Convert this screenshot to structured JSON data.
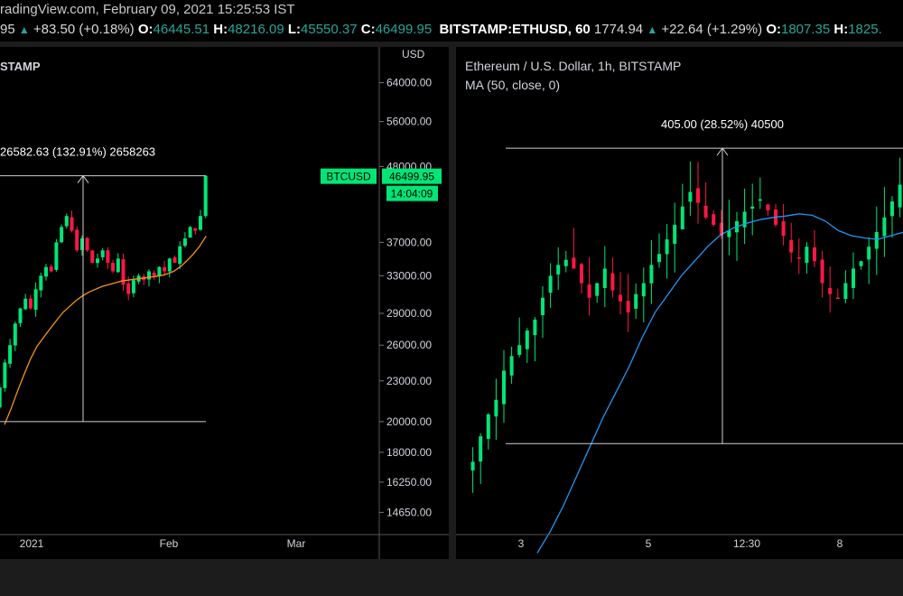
{
  "header": {
    "source_line": "radingView.com, February 09, 2021 15:25:53 IST",
    "btc_quote": {
      "last_fragment": "95",
      "change": "+83.50 (+0.18%)",
      "open_label": "O:",
      "open": "46445.51",
      "high_label": "H:",
      "high": "48216.09",
      "low_label": "L:",
      "low": "45550.37",
      "close_label": "C:",
      "close": "46499.95"
    },
    "eth_quote": {
      "symbol": "BITSTAMP:ETHUSD, 60",
      "last": "1774.94",
      "change": "+22.64 (+1.29%)",
      "open_label": "O:",
      "open": "1807.35",
      "high_label": "H:",
      "high": "1825."
    }
  },
  "colors": {
    "up": "#00e676",
    "down": "#ff1744",
    "ma_btc": "#f7931a",
    "ma_eth": "#2196f3",
    "background": "#000000",
    "price_tag": "#00e676"
  },
  "chart_data": [
    {
      "type": "candlestick",
      "title": "STAMP",
      "axis_unit": "USD",
      "scale": "log",
      "ylim": [
        14000,
        68000
      ],
      "y_ticks": [
        "64000.00",
        "56000.00",
        "48000.00",
        "37000.00",
        "33000.00",
        "29000.00",
        "26000.00",
        "23000.00",
        "20000.00",
        "18000.00",
        "16250.00",
        "14650.00"
      ],
      "x_ticks": [
        "2021",
        "Feb",
        "Mar"
      ],
      "last_price_label": "BTCUSD",
      "last_price": "46499.95",
      "countdown": "14:04:09",
      "measure": {
        "label": "26582.63 (132.91%) 2658263",
        "from": 20000,
        "to": 46500
      },
      "close": [
        21000,
        22500,
        24500,
        26000,
        28000,
        29500,
        30500,
        29500,
        31500,
        33000,
        34000,
        33500,
        37000,
        39000,
        40500,
        38500,
        36000,
        37500,
        36000,
        34500,
        35000,
        36000,
        34500,
        33500,
        35000,
        32000,
        31000,
        32500,
        33000,
        32500,
        33500,
        33000,
        34000,
        33500,
        35000,
        34500,
        36500,
        37500,
        39000,
        38500,
        40500,
        46500
      ],
      "ma": [
        19800,
        20900,
        22200,
        23500,
        24800,
        25900,
        26700,
        27500,
        28300,
        29100,
        29700,
        30300,
        30800,
        31200,
        31500,
        31800,
        32000,
        32200,
        32400,
        32500,
        32600,
        32700,
        32800,
        32900,
        33000,
        33200,
        33500,
        34000,
        34700,
        35500,
        36500,
        37800
      ]
    },
    {
      "type": "candlestick",
      "title": "Ethereum / U.S. Dollar, 1h, BITSTAMP",
      "subtitle": "MA (50, close, 0)",
      "ylim": [
        1320,
        1840
      ],
      "x_ticks": [
        "3",
        "5",
        "12:30",
        "8"
      ],
      "measure": {
        "label": "405.00 (28.52%) 40500",
        "from": 1420,
        "to": 1825
      },
      "close": [
        1380,
        1395,
        1430,
        1460,
        1480,
        1520,
        1540,
        1555,
        1575,
        1590,
        1620,
        1650,
        1665,
        1672,
        1660,
        1640,
        1620,
        1640,
        1660,
        1630,
        1615,
        1600,
        1625,
        1640,
        1665,
        1680,
        1700,
        1720,
        1745,
        1765,
        1750,
        1730,
        1720,
        1705,
        1712,
        1725,
        1738,
        1745,
        1755,
        1740,
        1720,
        1705,
        1682,
        1675,
        1690,
        1670,
        1640,
        1625,
        1620,
        1640,
        1660,
        1670,
        1690,
        1710,
        1730,
        1752,
        1775
      ],
      "ma": [
        1270,
        1300,
        1335,
        1375,
        1415,
        1455,
        1490,
        1525,
        1565,
        1600,
        1625,
        1650,
        1670,
        1690,
        1706,
        1716,
        1722,
        1727,
        1730,
        1732,
        1735,
        1733,
        1725,
        1712,
        1705,
        1702,
        1700,
        1705,
        1710
      ]
    }
  ]
}
